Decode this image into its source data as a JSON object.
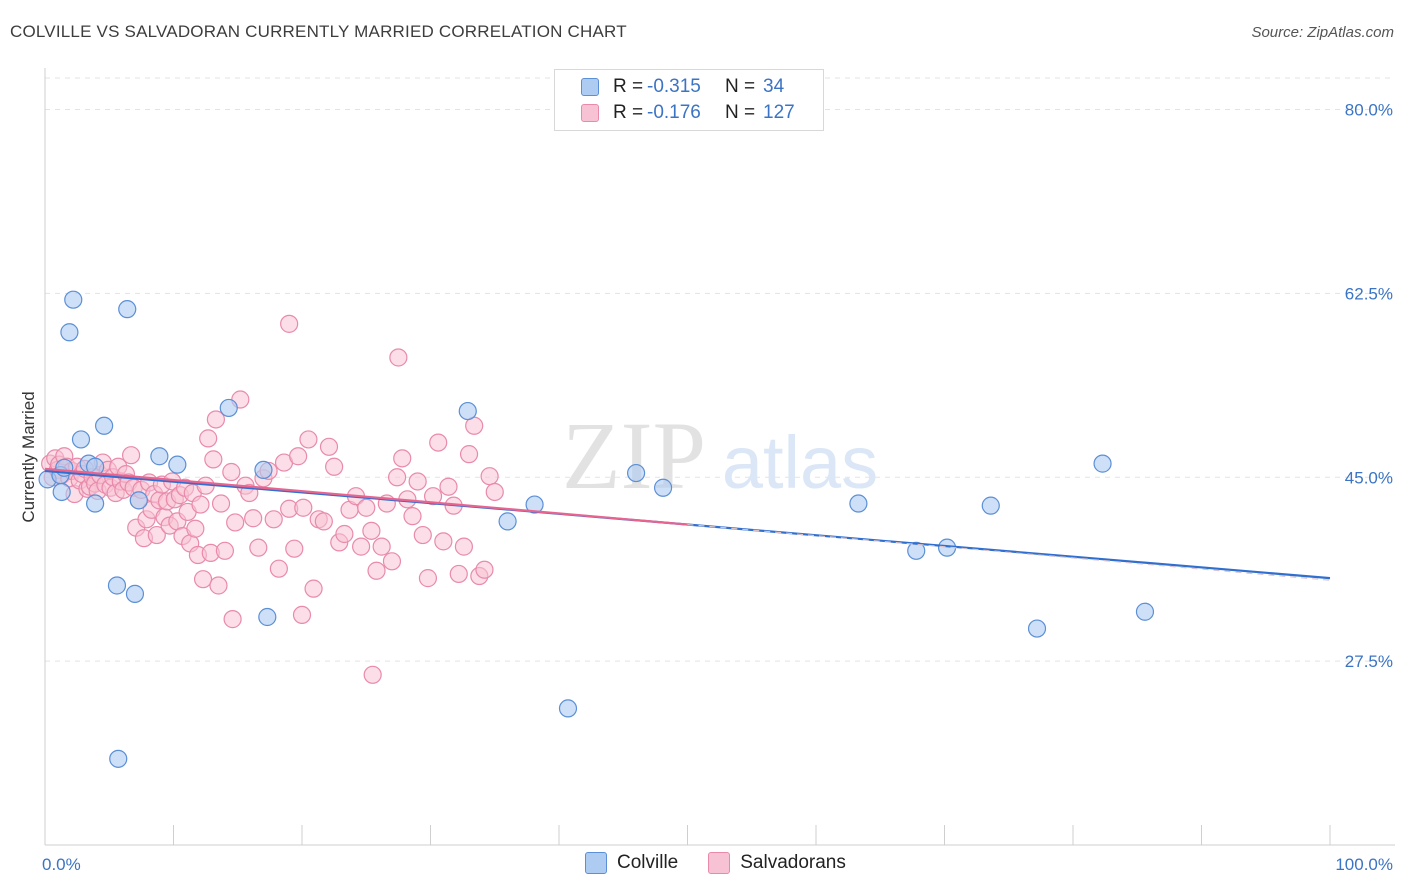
{
  "header": {
    "title": "COLVILLE VS SALVADORAN CURRENTLY MARRIED CORRELATION CHART",
    "source": "Source: ZipAtlas.com"
  },
  "watermark": {
    "zip": "ZIP",
    "atlas": "atlas"
  },
  "legend": {
    "rows": [
      {
        "r_label": "R =",
        "r_value": "-0.315",
        "n_label": "N =",
        "n_value": "34"
      },
      {
        "r_label": "R =",
        "r_value": "-0.176",
        "n_label": "N =",
        "n_value": "127"
      }
    ]
  },
  "bottom_legend": {
    "colville": "Colville",
    "salvadorans": "Salvadorans"
  },
  "colors": {
    "colville_fill": "#aecbf2",
    "colville_stroke": "#5b8fd6",
    "colville_line": "#2f6fcf",
    "salv_fill": "#f7c2d3",
    "salv_stroke": "#e98aab",
    "salv_line": "#e8648f",
    "tick": "#3b74c4",
    "grid": "#e3e3e3"
  },
  "chart_data": {
    "type": "scatter",
    "title": "COLVILLE VS SALVADORAN CURRENTLY MARRIED CORRELATION CHART",
    "xlabel": "",
    "ylabel": "Currently Married",
    "xlim": [
      0,
      100
    ],
    "ylim": [
      10,
      83
    ],
    "x_tick_labels": [
      "0.0%",
      "100.0%"
    ],
    "y_ticks": [
      27.5,
      45.0,
      62.5,
      80.0
    ],
    "y_tick_labels": [
      "27.5%",
      "45.0%",
      "62.5%",
      "80.0%"
    ],
    "series": [
      {
        "name": "Colville",
        "r": -0.315,
        "n": 34,
        "trend": {
          "x": [
            0,
            100
          ],
          "y": [
            45.6,
            35.4
          ]
        },
        "points": [
          [
            0.2,
            44.8
          ],
          [
            1.2,
            45.2
          ],
          [
            1.3,
            43.6
          ],
          [
            1.9,
            58.8
          ],
          [
            2.2,
            61.9
          ],
          [
            2.8,
            48.6
          ],
          [
            3.4,
            46.3
          ],
          [
            3.9,
            42.5
          ],
          [
            4.6,
            49.9
          ],
          [
            5.6,
            34.7
          ],
          [
            6.4,
            61.0
          ],
          [
            7.0,
            33.9
          ],
          [
            7.3,
            42.8
          ],
          [
            8.9,
            47.0
          ],
          [
            10.3,
            46.2
          ],
          [
            14.3,
            51.6
          ],
          [
            17.0,
            45.7
          ],
          [
            17.3,
            31.7
          ],
          [
            32.9,
            51.3
          ],
          [
            36.0,
            40.8
          ],
          [
            38.1,
            42.4
          ],
          [
            40.7,
            23.0
          ],
          [
            46.0,
            45.4
          ],
          [
            48.1,
            44.0
          ],
          [
            63.3,
            42.5
          ],
          [
            67.8,
            38.0
          ],
          [
            70.2,
            38.3
          ],
          [
            73.6,
            42.3
          ],
          [
            77.2,
            30.6
          ],
          [
            82.3,
            46.3
          ],
          [
            85.6,
            32.2
          ],
          [
            5.7,
            18.2
          ],
          [
            3.9,
            46.0
          ],
          [
            1.5,
            45.9
          ]
        ]
      },
      {
        "name": "Salvadorans",
        "r": -0.176,
        "n": 127,
        "trend": {
          "x": [
            0,
            50
          ],
          "y": [
            45.8,
            40.5
          ]
        },
        "points": [
          [
            0.4,
            46.3
          ],
          [
            0.6,
            45.0
          ],
          [
            0.8,
            46.8
          ],
          [
            1.0,
            45.7
          ],
          [
            1.1,
            46.2
          ],
          [
            1.3,
            45.2
          ],
          [
            1.5,
            47.0
          ],
          [
            1.7,
            46.0
          ],
          [
            1.9,
            44.9
          ],
          [
            2.1,
            45.6
          ],
          [
            2.3,
            43.4
          ],
          [
            2.5,
            46.0
          ],
          [
            2.7,
            44.7
          ],
          [
            2.9,
            45.3
          ],
          [
            3.1,
            45.8
          ],
          [
            3.3,
            43.9
          ],
          [
            3.5,
            44.1
          ],
          [
            3.7,
            45.0
          ],
          [
            3.9,
            44.4
          ],
          [
            4.1,
            43.7
          ],
          [
            4.3,
            45.2
          ],
          [
            4.5,
            46.4
          ],
          [
            4.7,
            44.3
          ],
          [
            4.9,
            45.7
          ],
          [
            5.1,
            44.0
          ],
          [
            5.3,
            45.0
          ],
          [
            5.5,
            43.5
          ],
          [
            5.7,
            46.0
          ],
          [
            5.9,
            44.6
          ],
          [
            6.1,
            43.8
          ],
          [
            6.3,
            45.3
          ],
          [
            6.5,
            44.5
          ],
          [
            6.7,
            47.1
          ],
          [
            6.9,
            44.0
          ],
          [
            7.1,
            40.2
          ],
          [
            7.3,
            42.8
          ],
          [
            7.5,
            43.8
          ],
          [
            7.7,
            39.2
          ],
          [
            7.9,
            41.0
          ],
          [
            8.1,
            44.5
          ],
          [
            8.3,
            41.9
          ],
          [
            8.5,
            43.4
          ],
          [
            8.7,
            39.5
          ],
          [
            8.9,
            42.8
          ],
          [
            9.1,
            44.3
          ],
          [
            9.3,
            41.2
          ],
          [
            9.5,
            42.7
          ],
          [
            9.7,
            40.4
          ],
          [
            9.9,
            44.6
          ],
          [
            10.1,
            42.9
          ],
          [
            10.3,
            40.8
          ],
          [
            10.5,
            43.3
          ],
          [
            10.7,
            39.4
          ],
          [
            10.9,
            44.0
          ],
          [
            11.1,
            41.7
          ],
          [
            11.3,
            38.7
          ],
          [
            11.5,
            43.5
          ],
          [
            11.7,
            40.1
          ],
          [
            11.9,
            37.6
          ],
          [
            12.1,
            42.4
          ],
          [
            12.3,
            35.3
          ],
          [
            12.5,
            44.2
          ],
          [
            12.7,
            48.7
          ],
          [
            12.9,
            37.8
          ],
          [
            13.1,
            46.7
          ],
          [
            13.3,
            50.5
          ],
          [
            13.5,
            34.7
          ],
          [
            13.7,
            42.5
          ],
          [
            14.0,
            38.0
          ],
          [
            14.5,
            45.5
          ],
          [
            14.8,
            40.7
          ],
          [
            15.2,
            52.4
          ],
          [
            15.6,
            44.2
          ],
          [
            15.9,
            43.5
          ],
          [
            16.2,
            41.1
          ],
          [
            16.6,
            38.3
          ],
          [
            17.0,
            44.9
          ],
          [
            17.4,
            45.6
          ],
          [
            17.8,
            41.0
          ],
          [
            18.2,
            36.3
          ],
          [
            18.6,
            46.4
          ],
          [
            19.0,
            42.0
          ],
          [
            19.4,
            38.2
          ],
          [
            19.7,
            47.0
          ],
          [
            20.1,
            42.1
          ],
          [
            20.5,
            48.6
          ],
          [
            20.9,
            34.4
          ],
          [
            21.3,
            41.0
          ],
          [
            21.7,
            40.8
          ],
          [
            22.1,
            47.9
          ],
          [
            22.5,
            46.0
          ],
          [
            22.9,
            38.8
          ],
          [
            23.3,
            39.6
          ],
          [
            23.7,
            41.9
          ],
          [
            24.2,
            43.2
          ],
          [
            24.6,
            38.4
          ],
          [
            25.0,
            42.1
          ],
          [
            25.4,
            39.9
          ],
          [
            25.8,
            36.1
          ],
          [
            26.2,
            38.4
          ],
          [
            26.6,
            42.5
          ],
          [
            27.0,
            37.0
          ],
          [
            27.4,
            45.0
          ],
          [
            27.8,
            46.8
          ],
          [
            28.2,
            42.9
          ],
          [
            28.6,
            41.3
          ],
          [
            29.0,
            44.6
          ],
          [
            29.4,
            39.5
          ],
          [
            29.8,
            35.4
          ],
          [
            30.2,
            43.2
          ],
          [
            30.6,
            48.3
          ],
          [
            31.0,
            38.9
          ],
          [
            31.4,
            44.1
          ],
          [
            31.8,
            42.3
          ],
          [
            32.2,
            35.8
          ],
          [
            32.6,
            38.4
          ],
          [
            33.0,
            47.2
          ],
          [
            33.4,
            49.9
          ],
          [
            33.8,
            35.6
          ],
          [
            34.2,
            36.2
          ],
          [
            34.6,
            45.1
          ],
          [
            35.0,
            43.6
          ],
          [
            20.0,
            31.9
          ],
          [
            14.6,
            31.5
          ],
          [
            25.5,
            26.2
          ],
          [
            19.0,
            59.6
          ],
          [
            27.5,
            56.4
          ]
        ]
      }
    ]
  }
}
